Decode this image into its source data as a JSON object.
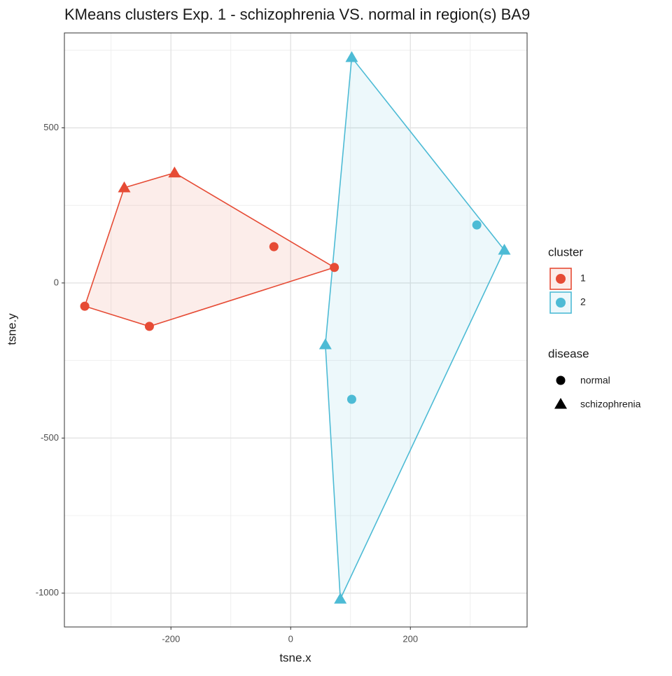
{
  "chart_data": {
    "type": "scatter",
    "title": "KMeans clusters Exp. 1 - schizophrenia VS. normal in region(s) BA9",
    "x_label": "tsne.x",
    "y_label": "tsne.y",
    "xlim": [
      -378,
      395
    ],
    "ylim": [
      -1109,
      806
    ],
    "xticks": [
      -200,
      0,
      200
    ],
    "yticks": [
      -1000,
      -500,
      0,
      500
    ],
    "grid": true,
    "legend_title": "cluster",
    "series": [
      {
        "name": "1",
        "color": "#E64B35",
        "x": [
          -344,
          -236,
          -278,
          -194,
          -28,
          73
        ],
        "values": [
          -75,
          -140,
          307,
          355,
          117,
          50
        ],
        "disease": [
          "normal",
          "normal",
          "schizophrenia",
          "schizophrenia",
          "normal",
          "normal"
        ]
      },
      {
        "name": "2",
        "color": "#4DBBD5",
        "x": [
          102,
          311,
          357,
          58,
          102,
          83
        ],
        "values": [
          727,
          187,
          106,
          -199,
          -375,
          -1019
        ],
        "disease": [
          "schizophrenia",
          "normal",
          "schizophrenia",
          "schizophrenia",
          "normal",
          "schizophrenia"
        ]
      }
    ],
    "shape_legend": {
      "title": "disease",
      "categories": [
        "normal",
        "schizophrenia"
      ]
    }
  }
}
